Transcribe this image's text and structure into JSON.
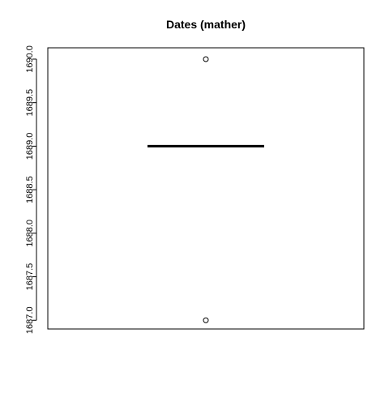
{
  "chart_data": {
    "type": "boxplot",
    "title": "Dates (mather)",
    "xlabel": "",
    "ylabel": "",
    "ylim": [
      1686.9,
      1690.13
    ],
    "yticks": [
      "1687.0",
      "1687.5",
      "1688.0",
      "1688.5",
      "1689.0",
      "1689.5",
      "1690.0"
    ],
    "grid": false,
    "box": {
      "min": 1689,
      "q1": 1689,
      "median": 1689,
      "q3": 1689,
      "max": 1689,
      "outliers": [
        1690,
        1687
      ]
    }
  }
}
